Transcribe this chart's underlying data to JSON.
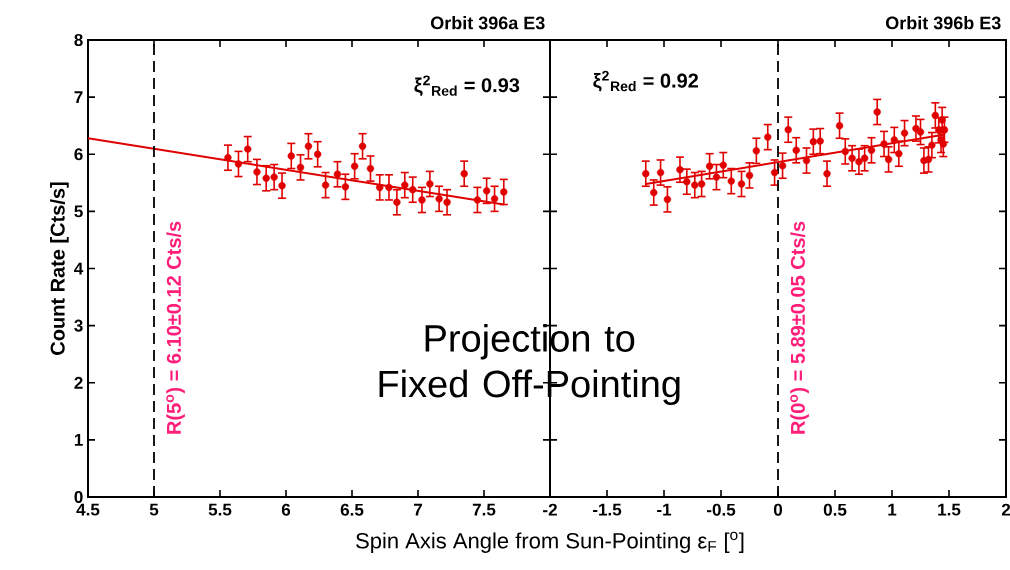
{
  "chart_data": [
    {
      "type": "scatter",
      "title": "Orbit 396a E3",
      "xlabel": "Spin Axis Angle from Sun-Pointing ε$_{F}$ [$^{o}$]",
      "ylabel": "Count Rate [Cts/s]",
      "xlim": [
        4.5,
        8
      ],
      "ylim": [
        0,
        8
      ],
      "xticks": [
        4.5,
        5,
        5.5,
        6,
        6.5,
        7,
        7.5
      ],
      "yticks": [
        0,
        1,
        2,
        3,
        4,
        5,
        6,
        7,
        8
      ],
      "ref_lines": [
        {
          "axis": "x",
          "value": 5,
          "label": "R(5$^{o}$) = 6.10±0.12 Cts/s",
          "color": "#000000",
          "line_style": "dashed"
        }
      ],
      "annotations": [
        "ξ$^{2}$$_{Red}$ = 0.93",
        "Projection to Fixed Off-Pointing"
      ],
      "series": [
        {
          "color": "#e00000",
          "marker": "circle",
          "x": [
            5.56,
            5.64,
            5.71,
            5.78,
            5.85,
            5.91,
            5.97,
            6.04,
            6.11,
            6.17,
            6.24,
            6.3,
            6.39,
            6.45,
            6.52,
            6.58,
            6.64,
            6.71,
            6.78,
            6.84,
            6.9,
            6.96,
            7.03,
            7.09,
            7.16,
            7.22,
            7.35,
            7.45,
            7.52,
            7.58,
            7.65
          ],
          "values": [
            5.94,
            5.83,
            6.09,
            5.69,
            5.58,
            5.6,
            5.45,
            5.97,
            5.77,
            6.14,
            6.0,
            5.46,
            5.65,
            5.43,
            5.79,
            6.14,
            5.75,
            5.42,
            5.42,
            5.16,
            5.46,
            5.38,
            5.2,
            5.48,
            5.22,
            5.16,
            5.66,
            5.2,
            5.36,
            5.22,
            5.34
          ],
          "errors": [
            0.22,
            0.22,
            0.22,
            0.22,
            0.22,
            0.22,
            0.22,
            0.22,
            0.22,
            0.22,
            0.22,
            0.22,
            0.22,
            0.22,
            0.22,
            0.22,
            0.22,
            0.22,
            0.22,
            0.22,
            0.22,
            0.22,
            0.22,
            0.22,
            0.22,
            0.22,
            0.22,
            0.22,
            0.22,
            0.22,
            0.22
          ]
        },
        {
          "type": "line",
          "marker": "none",
          "color": "#e00000",
          "x": [
            4.5,
            7.65
          ],
          "values": [
            6.28,
            5.12
          ]
        }
      ]
    },
    {
      "type": "scatter",
      "title": "Orbit 396b E3",
      "xlim": [
        -2,
        2
      ],
      "ylim": [
        0,
        8
      ],
      "xticks": [
        -2,
        -1.5,
        -1,
        -0.5,
        0,
        0.5,
        1,
        1.5,
        2
      ],
      "yticks": [
        0,
        1,
        2,
        3,
        4,
        5,
        6,
        7,
        8
      ],
      "tick_labels": "x",
      "ref_lines": [
        {
          "axis": "x",
          "value": 0,
          "label": "R(0$^{o}$) = 5.89±0.05 Cts/s",
          "color": "#000000",
          "line_style": "dashed"
        }
      ],
      "annotations": [
        "ξ$^{2}$$_{Red}$ = 0.92"
      ],
      "series": [
        {
          "color": "#e00000",
          "marker": "circle",
          "x": [
            -1.16,
            -1.09,
            -1.03,
            -0.97,
            -0.86,
            -0.8,
            -0.73,
            -0.67,
            -0.6,
            -0.54,
            -0.48,
            -0.41,
            -0.32,
            -0.25,
            -0.19,
            -0.09,
            -0.03,
            0.04,
            0.09,
            0.16,
            0.25,
            0.31,
            0.37,
            0.43,
            0.54,
            0.59,
            0.65,
            0.71,
            0.76,
            0.82,
            0.87,
            0.93,
            0.97,
            1.02,
            1.06,
            1.11,
            1.21,
            1.25,
            1.28,
            1.32,
            1.35,
            1.38,
            1.41,
            1.43,
            1.44,
            1.45,
            1.46
          ],
          "values": [
            5.66,
            5.33,
            5.68,
            5.21,
            5.73,
            5.52,
            5.46,
            5.48,
            5.79,
            5.6,
            5.81,
            5.53,
            5.48,
            5.63,
            6.06,
            6.3,
            5.68,
            5.8,
            6.43,
            6.07,
            5.89,
            6.22,
            6.23,
            5.66,
            6.5,
            6.05,
            5.93,
            5.87,
            5.93,
            6.07,
            6.74,
            6.18,
            5.91,
            6.25,
            6.01,
            6.37,
            6.45,
            6.39,
            5.89,
            5.91,
            6.16,
            6.68,
            6.42,
            6.25,
            6.6,
            6.18,
            6.43
          ],
          "errors": [
            0.22,
            0.22,
            0.22,
            0.22,
            0.22,
            0.22,
            0.22,
            0.22,
            0.22,
            0.22,
            0.22,
            0.22,
            0.22,
            0.22,
            0.22,
            0.22,
            0.22,
            0.22,
            0.22,
            0.22,
            0.22,
            0.22,
            0.22,
            0.22,
            0.22,
            0.22,
            0.22,
            0.22,
            0.22,
            0.22,
            0.22,
            0.22,
            0.22,
            0.22,
            0.22,
            0.22,
            0.22,
            0.22,
            0.22,
            0.22,
            0.22,
            0.22,
            0.22,
            0.22,
            0.22,
            0.22,
            0.22
          ]
        },
        {
          "type": "line",
          "marker": "none",
          "color": "#e00000",
          "x": [
            -1.16,
            1.45
          ],
          "values": [
            5.48,
            6.34
          ]
        }
      ]
    }
  ]
}
